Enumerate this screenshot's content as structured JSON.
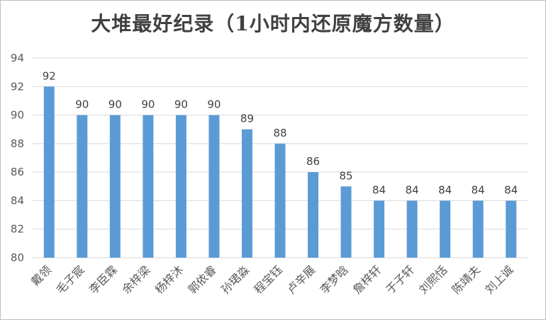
{
  "chart_data": {
    "type": "bar",
    "title": "大堆最好纪录（1小时内还原魔方数量）",
    "xlabel": "",
    "ylabel": "",
    "categories": [
      "戴领",
      "毛子宸",
      "李臣霖",
      "余梓梁",
      "杨梓沐",
      "郭依睿",
      "孙珺淼",
      "程宝钰",
      "卢辛展",
      "李梦晗",
      "詹梓轩",
      "于子轩",
      "刘熙恬",
      "陈靖夫",
      "刘上诚"
    ],
    "values": [
      92,
      90,
      90,
      90,
      90,
      90,
      89,
      88,
      86,
      85,
      84,
      84,
      84,
      84,
      84
    ],
    "ylim": [
      80,
      94
    ],
    "yticks": [
      80,
      82,
      84,
      86,
      88,
      90,
      92,
      94
    ],
    "grid": true,
    "legend": "none",
    "bar_color": "#5b9bd5",
    "grid_color": "#d9d9d9"
  }
}
